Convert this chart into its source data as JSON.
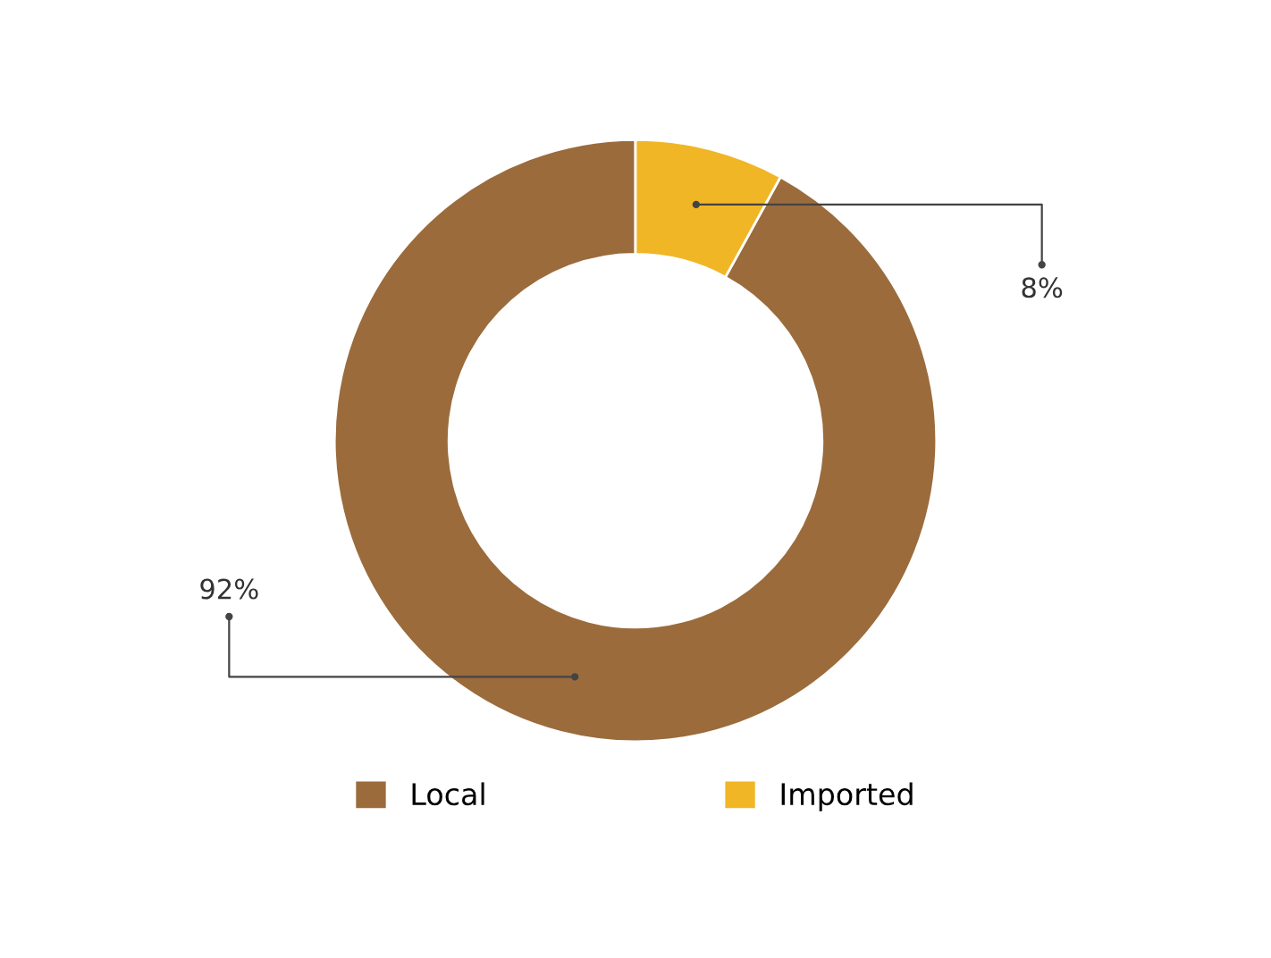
{
  "chart_data": {
    "type": "donut",
    "categories": [
      "Local",
      "Imported"
    ],
    "values": [
      92,
      8
    ],
    "colors": [
      "#9b6b3c",
      "#f0b626"
    ],
    "value_labels": [
      "92%",
      "8%"
    ],
    "legend": "bottom"
  }
}
